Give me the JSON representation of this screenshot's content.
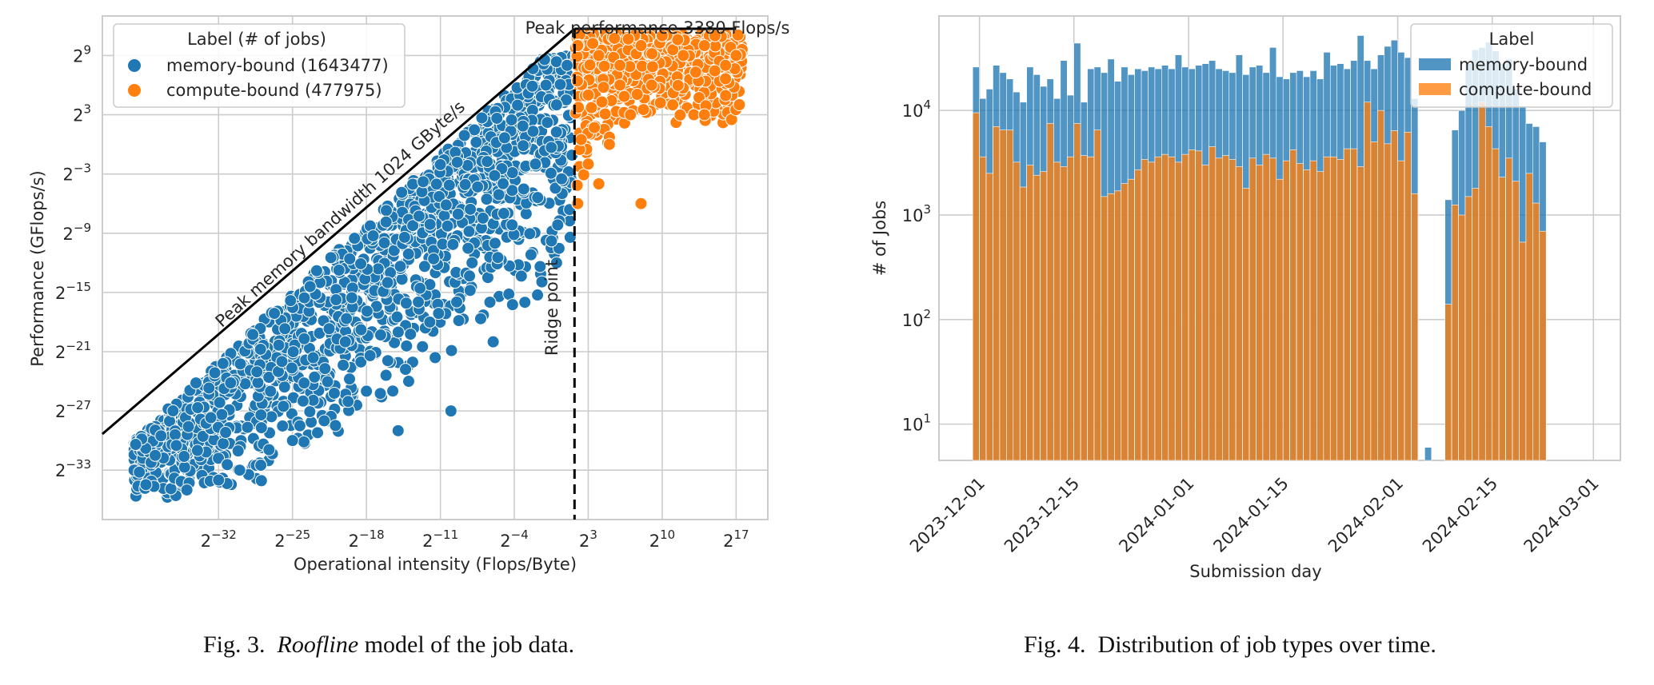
{
  "figure3": {
    "caption_label": "Fig. 3.",
    "caption_italic": "Roofline",
    "caption_rest": "model of the job data.",
    "chart_data": {
      "type": "scatter",
      "xlabel": "Operational intensity (Flops/Byte)",
      "ylabel": "Performance (GFlops/s)",
      "x_scale": "log2",
      "y_scale": "log2",
      "xlim_log2": [
        -43,
        20
      ],
      "ylim_log2": [
        -38,
        13
      ],
      "x_ticks": [
        {
          "exp": -32,
          "label": "−32"
        },
        {
          "exp": -25,
          "label": "−25"
        },
        {
          "exp": -18,
          "label": "−18"
        },
        {
          "exp": -11,
          "label": "−11"
        },
        {
          "exp": -4,
          "label": "−4"
        },
        {
          "exp": 3,
          "label": "3"
        },
        {
          "exp": 10,
          "label": "10"
        },
        {
          "exp": 17,
          "label": "17"
        }
      ],
      "y_ticks": [
        {
          "exp": 9,
          "label": "9"
        },
        {
          "exp": 3,
          "label": "3"
        },
        {
          "exp": -3,
          "label": "−3"
        },
        {
          "exp": -9,
          "label": "−9"
        },
        {
          "exp": -15,
          "label": "−15"
        },
        {
          "exp": -21,
          "label": "−21"
        },
        {
          "exp": -27,
          "label": "−27"
        },
        {
          "exp": -33,
          "label": "−33"
        }
      ],
      "grid": true,
      "legend": {
        "title": "Label (# of jobs)",
        "placement": "top-left",
        "entries": [
          {
            "name": "memory-bound (1643477)",
            "color": "#1f77b4"
          },
          {
            "name": "compute-bound (477975)",
            "color": "#ff7f0e"
          }
        ]
      },
      "annotations": {
        "peak_performance": "Peak performance 3380 Flops/s",
        "peak_bandwidth": "Peak memory bandwidth 1024 GByte/s",
        "ridge": "Ridge point"
      },
      "roofline": {
        "ridge_x_log2": 1.7,
        "peak_y_log2": 11.7,
        "end_x_log2": 17
      },
      "series": [
        {
          "name": "memory-bound",
          "color": "#1f77b4",
          "points_log2": [
            [
              -40,
              -33
            ],
            [
              -39.5,
              -33.2
            ],
            [
              -38,
              -31.5
            ],
            [
              -36,
              -30.5
            ],
            [
              -35,
              -35
            ],
            [
              -34,
              -31
            ],
            [
              -32,
              -34
            ],
            [
              -30,
              -33
            ],
            [
              -28,
              -32.5
            ],
            [
              -25,
              -30
            ],
            [
              -22,
              -28
            ],
            [
              -18,
              -25
            ],
            [
              -14,
              -24
            ],
            [
              -10,
              -27
            ],
            [
              -15,
              -29
            ],
            [
              -6,
              -20
            ],
            [
              -3,
              -16
            ],
            [
              0,
              -12
            ],
            [
              -20,
              -20
            ],
            [
              -24,
              -26
            ],
            [
              -12,
              -18
            ],
            [
              -8,
              -12
            ],
            [
              -5,
              -7
            ],
            [
              -2,
              -2
            ],
            [
              0,
              4
            ],
            [
              1,
              8
            ],
            [
              -1,
              6
            ],
            [
              -16,
              -14
            ],
            [
              -26,
              -22
            ]
          ]
        },
        {
          "name": "compute-bound",
          "color": "#ff7f0e",
          "points_log2": [
            [
              2,
              10
            ],
            [
              4,
              9
            ],
            [
              6,
              8
            ],
            [
              8,
              10
            ],
            [
              10,
              11
            ],
            [
              12,
              9
            ],
            [
              14,
              10
            ],
            [
              16,
              8
            ],
            [
              15,
              11
            ],
            [
              13,
              3
            ],
            [
              11,
              4
            ],
            [
              9,
              6
            ],
            [
              7,
              3
            ],
            [
              5,
              0
            ],
            [
              3,
              -2
            ],
            [
              2,
              -6
            ],
            [
              4,
              -4
            ],
            [
              8,
              -6
            ],
            [
              17,
              9
            ],
            [
              14,
              3
            ],
            [
              6,
              6
            ],
            [
              3,
              5
            ]
          ]
        }
      ]
    }
  },
  "figure4": {
    "caption_label": "Fig. 4.",
    "caption_rest": "Distribution of job types over time.",
    "chart_data": {
      "type": "bar",
      "stacked": true,
      "xlabel": "Submission day",
      "ylabel": "# of Jobs",
      "y_scale": "log",
      "ylim": [
        4.5,
        80000
      ],
      "y_ticks": [
        {
          "base": "10",
          "exp": "1",
          "value": 10
        },
        {
          "base": "10",
          "exp": "2",
          "value": 100
        },
        {
          "base": "10",
          "exp": "3",
          "value": 1000
        },
        {
          "base": "10",
          "exp": "4",
          "value": 10000
        }
      ],
      "x_ticks": [
        "2023-12-01",
        "2023-12-15",
        "2024-01-01",
        "2024-01-15",
        "2024-02-01",
        "2024-02-15",
        "2024-03-01"
      ],
      "x_tick_day_index": [
        0,
        14,
        31,
        45,
        62,
        76,
        91
      ],
      "grid": true,
      "legend": {
        "title": "Label",
        "placement": "top-right",
        "entries": [
          {
            "name": "memory-bound",
            "color": "#1f77b4"
          },
          {
            "name": "compute-bound",
            "color": "#ff7f0e"
          }
        ]
      },
      "start_day_index": -1,
      "series": [
        {
          "name": "memory-bound",
          "color": "#1f77b4",
          "values": [
            26000,
            13000,
            16000,
            27000,
            23000,
            20000,
            15000,
            12000,
            26000,
            22000,
            17000,
            20000,
            13000,
            30000,
            14000,
            44000,
            12000,
            25000,
            26000,
            23000,
            31000,
            19000,
            26000,
            22000,
            25000,
            24000,
            26000,
            25000,
            27000,
            25000,
            34000,
            26000,
            25000,
            27000,
            28000,
            30000,
            25000,
            24000,
            23000,
            34000,
            22000,
            26000,
            27000,
            23000,
            40000,
            21000,
            20000,
            23000,
            24000,
            21000,
            24000,
            20000,
            36000,
            27000,
            28000,
            25000,
            30000,
            52000,
            30000,
            25000,
            34000,
            41000,
            47000,
            36000,
            32000,
            13000,
            0,
            6,
            0,
            0,
            1400,
            6500,
            10000,
            28000,
            38000,
            40000,
            45000,
            37000,
            28000,
            31000,
            16000,
            11000,
            7500,
            7000,
            5000
          ]
        },
        {
          "name": "compute-bound",
          "color": "#ff7f0e",
          "values": [
            9500,
            3600,
            2500,
            7000,
            6500,
            6500,
            3200,
            1850,
            3000,
            2400,
            2600,
            7500,
            3200,
            2900,
            3600,
            7500,
            3700,
            3600,
            6500,
            1500,
            1600,
            1700,
            2000,
            2200,
            2700,
            3400,
            3200,
            3600,
            3800,
            3600,
            3200,
            3800,
            4200,
            4100,
            3000,
            4500,
            3500,
            3700,
            3400,
            2900,
            1800,
            3500,
            3000,
            3800,
            3500,
            2200,
            3300,
            4200,
            3100,
            2700,
            3300,
            2600,
            3600,
            3600,
            3400,
            4300,
            4300,
            2900,
            12000,
            5000,
            10000,
            4800,
            6400,
            3300,
            6200,
            1600,
            0,
            0,
            0,
            0,
            140,
            1250,
            1000,
            1500,
            1800,
            12000,
            7000,
            4300,
            2300,
            3500,
            2100,
            550,
            2500,
            1300,
            700
          ]
        }
      ]
    }
  }
}
